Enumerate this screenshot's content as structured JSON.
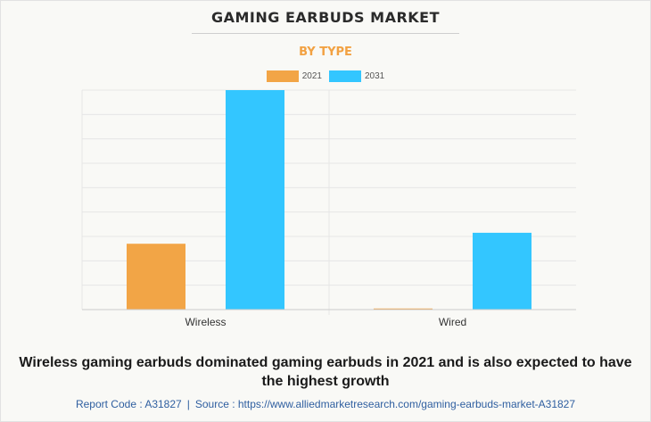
{
  "header": {
    "title": "GAMING EARBUDS MARKET",
    "subtitle": "BY TYPE"
  },
  "chart_data": {
    "type": "bar",
    "categories": [
      "Wireless",
      "Wired"
    ],
    "series": [
      {
        "name": "2021",
        "color": "#f2a546",
        "values": [
          0.3,
          0.005
        ]
      },
      {
        "name": "2031",
        "color": "#33c6ff",
        "values": [
          1.0,
          0.35
        ]
      }
    ],
    "ylim": [
      0,
      1.0
    ],
    "grid": true,
    "legend_position": "top-center"
  },
  "caption": "Wireless gaming earbuds dominated gaming earbuds in 2021 and is also expected to have the highest growth",
  "footer": {
    "report_code": "Report Code : A31827",
    "separator": "|",
    "source": "Source : https://www.alliedmarketresearch.com/gaming-earbuds-market-A31827"
  }
}
